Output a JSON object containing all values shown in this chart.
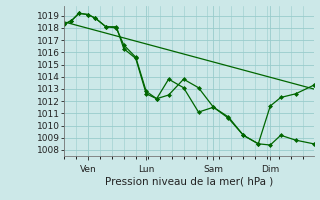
{
  "background_color": "#cce8e8",
  "grid_color": "#99cccc",
  "line_color": "#006600",
  "marker_color": "#006600",
  "ylabel_ticks": [
    1008,
    1009,
    1010,
    1011,
    1012,
    1013,
    1014,
    1015,
    1016,
    1017,
    1018,
    1019
  ],
  "ylim": [
    1007.5,
    1019.8
  ],
  "xlabel": "Pression niveau de la mer( hPa )",
  "xlabel_fontsize": 7.5,
  "tick_fontsize": 6.5,
  "xtick_labels": [
    "Ven",
    "Lun",
    "Sam",
    "Dim"
  ],
  "xtick_positions": [
    16,
    55,
    100,
    138
  ],
  "xlim": [
    0,
    167
  ],
  "line1_x": [
    0,
    5,
    10,
    16,
    21,
    28,
    35,
    40,
    48,
    55,
    62,
    70,
    80,
    90,
    100,
    110,
    120,
    130,
    138,
    145,
    155,
    167
  ],
  "line1_y": [
    1018.3,
    1018.6,
    1019.2,
    1019.1,
    1018.8,
    1018.1,
    1018.0,
    1016.6,
    1015.6,
    1012.8,
    1012.2,
    1012.5,
    1013.8,
    1013.1,
    1011.5,
    1010.7,
    1009.2,
    1008.5,
    1008.4,
    1009.2,
    1008.8,
    1008.5
  ],
  "line2_x": [
    0,
    5,
    10,
    16,
    21,
    28,
    35,
    40,
    48,
    55,
    62,
    70,
    80,
    90,
    100,
    110,
    120,
    130,
    138,
    145,
    155,
    167
  ],
  "line2_y": [
    1018.3,
    1018.6,
    1019.2,
    1019.1,
    1018.8,
    1018.1,
    1018.1,
    1016.3,
    1015.5,
    1012.6,
    1012.2,
    1013.8,
    1013.1,
    1011.1,
    1011.5,
    1010.6,
    1009.2,
    1008.5,
    1011.6,
    1012.3,
    1012.6,
    1013.3
  ],
  "line3_x": [
    0,
    167
  ],
  "line3_y": [
    1018.5,
    1013.0
  ]
}
